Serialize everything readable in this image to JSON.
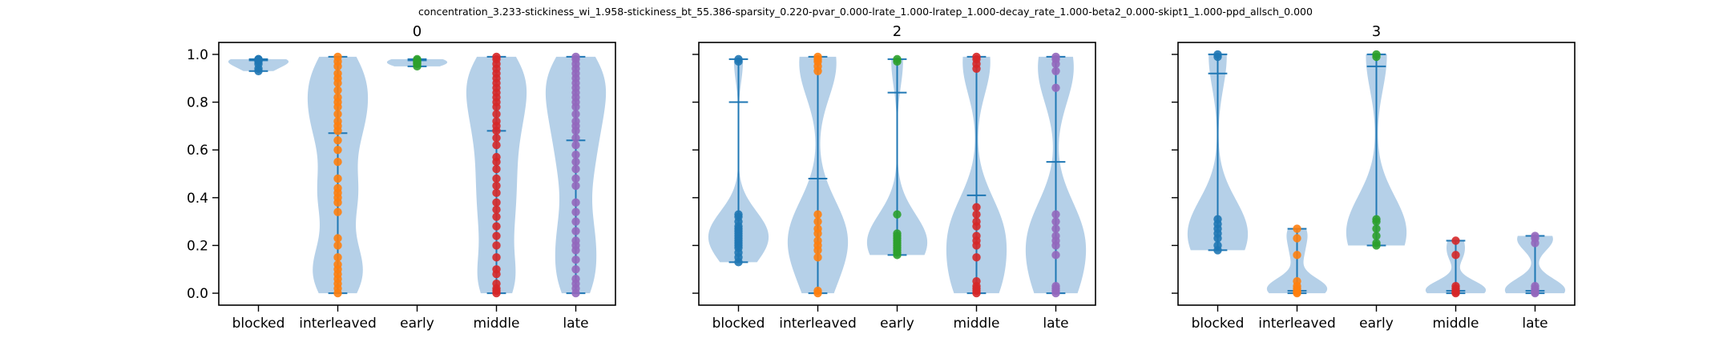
{
  "figure_title": "concentration_3.233-stickiness_wi_1.958-stickiness_bt_55.386-sparsity_0.220-pvar_0.000-lrate_1.000-lratep_1.000-decay_rate_1.000-beta2_0.000-skipt1_1.000-ppd_allsch_0.000",
  "colors": {
    "violin_body": "#a8c8e4",
    "violin_lines": "#1f77b4",
    "points": [
      "#1f77b4",
      "#ff7f0e",
      "#2ca02c",
      "#d62728",
      "#9467bd"
    ]
  },
  "chart_data": [
    {
      "type": "violin",
      "title": "0",
      "categories": [
        "blocked",
        "interleaved",
        "early",
        "middle",
        "late"
      ],
      "ylim": [
        -0.05,
        1.05
      ],
      "yticks": [
        "0.0",
        "0.2",
        "0.4",
        "0.6",
        "0.8",
        "1.0"
      ],
      "show_ytick_labels": true,
      "series": [
        {
          "category": "blocked",
          "min": 0.93,
          "max": 0.98,
          "mean": 0.975,
          "points": [
            0.93,
            0.94,
            0.96,
            0.97,
            0.975,
            0.98,
            0.98
          ]
        },
        {
          "category": "interleaved",
          "min": 0.0,
          "max": 0.99,
          "mean": 0.67,
          "points": [
            0.0,
            0.02,
            0.04,
            0.06,
            0.08,
            0.1,
            0.12,
            0.15,
            0.2,
            0.23,
            0.34,
            0.38,
            0.4,
            0.42,
            0.44,
            0.48,
            0.55,
            0.6,
            0.64,
            0.68,
            0.7,
            0.72,
            0.75,
            0.78,
            0.8,
            0.82,
            0.85,
            0.88,
            0.9,
            0.92,
            0.95,
            0.97,
            0.99
          ]
        },
        {
          "category": "early",
          "min": 0.95,
          "max": 0.98,
          "mean": 0.975,
          "points": [
            0.95,
            0.96,
            0.965,
            0.97,
            0.975,
            0.98
          ]
        },
        {
          "category": "middle",
          "min": 0.0,
          "max": 0.99,
          "mean": 0.68,
          "points": [
            0.0,
            0.01,
            0.02,
            0.04,
            0.08,
            0.1,
            0.15,
            0.2,
            0.24,
            0.28,
            0.32,
            0.35,
            0.38,
            0.42,
            0.45,
            0.48,
            0.52,
            0.55,
            0.57,
            0.62,
            0.65,
            0.68,
            0.7,
            0.72,
            0.75,
            0.78,
            0.8,
            0.82,
            0.84,
            0.86,
            0.88,
            0.9,
            0.92,
            0.94,
            0.96,
            0.98,
            0.99
          ]
        },
        {
          "category": "late",
          "min": 0.0,
          "max": 0.99,
          "mean": 0.64,
          "points": [
            0.0,
            0.02,
            0.04,
            0.06,
            0.1,
            0.14,
            0.18,
            0.2,
            0.22,
            0.26,
            0.3,
            0.34,
            0.38,
            0.45,
            0.48,
            0.52,
            0.55,
            0.58,
            0.62,
            0.65,
            0.68,
            0.7,
            0.72,
            0.75,
            0.78,
            0.8,
            0.82,
            0.84,
            0.86,
            0.88,
            0.9,
            0.92,
            0.94,
            0.96,
            0.98,
            0.99
          ]
        }
      ]
    },
    {
      "type": "violin",
      "title": "2",
      "categories": [
        "blocked",
        "interleaved",
        "early",
        "middle",
        "late"
      ],
      "ylim": [
        -0.05,
        1.05
      ],
      "yticks": [
        "0.0",
        "0.2",
        "0.4",
        "0.6",
        "0.8",
        "1.0"
      ],
      "show_ytick_labels": false,
      "series": [
        {
          "category": "blocked",
          "min": 0.13,
          "max": 0.98,
          "mean": 0.8,
          "points": [
            0.13,
            0.15,
            0.17,
            0.19,
            0.2,
            0.21,
            0.22,
            0.23,
            0.24,
            0.25,
            0.26,
            0.27,
            0.28,
            0.3,
            0.32,
            0.33,
            0.97,
            0.98
          ]
        },
        {
          "category": "interleaved",
          "min": 0.0,
          "max": 0.99,
          "mean": 0.48,
          "points": [
            0.0,
            0.01,
            0.15,
            0.18,
            0.2,
            0.22,
            0.25,
            0.27,
            0.3,
            0.33,
            0.93,
            0.95,
            0.97,
            0.98,
            0.99
          ]
        },
        {
          "category": "early",
          "min": 0.16,
          "max": 0.98,
          "mean": 0.84,
          "points": [
            0.16,
            0.17,
            0.18,
            0.19,
            0.2,
            0.21,
            0.22,
            0.23,
            0.24,
            0.25,
            0.33,
            0.97,
            0.98
          ]
        },
        {
          "category": "middle",
          "min": 0.0,
          "max": 0.99,
          "mean": 0.41,
          "points": [
            0.0,
            0.01,
            0.02,
            0.03,
            0.05,
            0.15,
            0.2,
            0.22,
            0.24,
            0.28,
            0.3,
            0.33,
            0.36,
            0.94,
            0.96,
            0.98,
            0.99
          ]
        },
        {
          "category": "late",
          "min": 0.0,
          "max": 0.99,
          "mean": 0.55,
          "points": [
            0.0,
            0.01,
            0.02,
            0.03,
            0.16,
            0.2,
            0.22,
            0.24,
            0.27,
            0.3,
            0.33,
            0.86,
            0.93,
            0.96,
            0.98,
            0.99
          ]
        }
      ]
    },
    {
      "type": "violin",
      "title": "3",
      "categories": [
        "blocked",
        "interleaved",
        "early",
        "middle",
        "late"
      ],
      "ylim": [
        -0.05,
        1.05
      ],
      "yticks": [
        "0.0",
        "0.2",
        "0.4",
        "0.6",
        "0.8",
        "1.0"
      ],
      "show_ytick_labels": false,
      "series": [
        {
          "category": "blocked",
          "min": 0.18,
          "max": 1.0,
          "mean": 0.92,
          "points": [
            0.18,
            0.2,
            0.23,
            0.25,
            0.27,
            0.29,
            0.31,
            0.99,
            1.0
          ]
        },
        {
          "category": "interleaved",
          "min": 0.0,
          "max": 0.27,
          "mean": 0.01,
          "points": [
            0.0,
            0.005,
            0.01,
            0.02,
            0.03,
            0.05,
            0.16,
            0.23,
            0.27
          ]
        },
        {
          "category": "early",
          "min": 0.2,
          "max": 1.0,
          "mean": 0.95,
          "points": [
            0.2,
            0.21,
            0.24,
            0.27,
            0.3,
            0.31,
            0.99,
            1.0
          ]
        },
        {
          "category": "middle",
          "min": 0.0,
          "max": 0.22,
          "mean": 0.01,
          "points": [
            0.0,
            0.005,
            0.01,
            0.02,
            0.03,
            0.16,
            0.22
          ]
        },
        {
          "category": "late",
          "min": 0.0,
          "max": 0.24,
          "mean": 0.01,
          "points": [
            0.0,
            0.005,
            0.01,
            0.02,
            0.03,
            0.21,
            0.23,
            0.24
          ]
        }
      ]
    }
  ]
}
